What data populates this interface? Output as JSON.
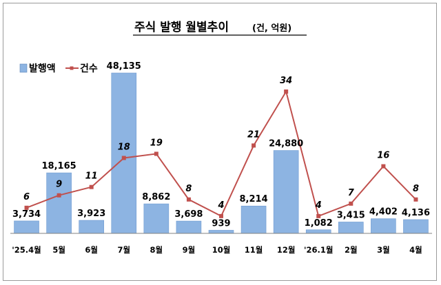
{
  "title": "주식 발행 월별추이",
  "unit": "(건, 억원)",
  "chart_data": {
    "type": "bar",
    "categories": [
      "'25.4월",
      "5월",
      "6월",
      "7월",
      "8월",
      "9월",
      "10월",
      "11월",
      "12월",
      "'26.1월",
      "2월",
      "3월",
      "4월"
    ],
    "series": [
      {
        "name": "발행액",
        "type": "bar",
        "values": [
          3734,
          18165,
          3923,
          48135,
          8862,
          3698,
          939,
          8214,
          24880,
          1082,
          3415,
          4402,
          4136
        ],
        "labels": [
          "3,734",
          "18,165",
          "3,923",
          "48,135",
          "8,862",
          "3,698",
          "939",
          "8,214",
          "24,880",
          "1,082",
          "3,415",
          "4,402",
          "4,136"
        ],
        "color": "#8db4e2"
      },
      {
        "name": "건수",
        "type": "line",
        "values": [
          6,
          9,
          11,
          18,
          19,
          8,
          4,
          21,
          34,
          4,
          7,
          16,
          8
        ],
        "labels": [
          "6",
          "9",
          "11",
          "18",
          "19",
          "8",
          "4",
          "21",
          "34",
          "4",
          "7",
          "16",
          "8"
        ],
        "color": "#c0504d"
      }
    ],
    "legend": "top-left",
    "grid": false
  }
}
